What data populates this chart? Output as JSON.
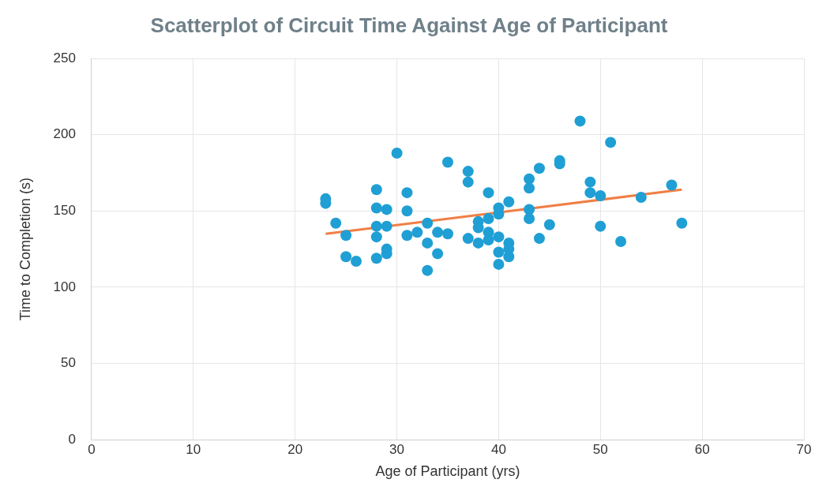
{
  "chart_data": {
    "type": "scatter",
    "title": "Scatterplot of Circuit Time Against Age of Participant",
    "xlabel": "Age of Participant (yrs)",
    "ylabel": "Time to Completion (s)",
    "xlim": [
      0,
      70
    ],
    "xticks": [
      0,
      10,
      20,
      30,
      40,
      50,
      60,
      70
    ],
    "ylim": [
      0,
      250
    ],
    "yticks": [
      0,
      50,
      100,
      150,
      200,
      250
    ],
    "grid": true,
    "legend": false,
    "marker": "circle",
    "series": [
      {
        "type": "scatter",
        "color": "#1f9fd4",
        "x": [
          23,
          23,
          24,
          25,
          25,
          26,
          28,
          28,
          28,
          28,
          28,
          29,
          29,
          29,
          29,
          30,
          31,
          31,
          31,
          32,
          33,
          33,
          33,
          34,
          34,
          35,
          35,
          37,
          37,
          37,
          38,
          38,
          38,
          39,
          39,
          39,
          39,
          40,
          40,
          40,
          40,
          40,
          41,
          41,
          41,
          41,
          43,
          43,
          43,
          43,
          44,
          44,
          45,
          46,
          46,
          48,
          49,
          49,
          50,
          50,
          51,
          52,
          54,
          57,
          58
        ],
        "values": [
          158,
          155,
          142,
          134,
          120,
          117,
          164,
          152,
          140,
          133,
          119,
          151,
          140,
          125,
          122,
          188,
          162,
          150,
          134,
          136,
          142,
          129,
          111,
          136,
          122,
          182,
          135,
          176,
          169,
          132,
          143,
          139,
          129,
          162,
          145,
          136,
          131,
          152,
          148,
          133,
          123,
          115,
          156,
          129,
          125,
          120,
          171,
          165,
          151,
          145,
          178,
          132,
          141,
          183,
          181,
          209,
          169,
          162,
          160,
          140,
          195,
          130,
          159,
          167,
          142
        ]
      },
      {
        "type": "line",
        "color": "#f07f45",
        "x": [
          23,
          58
        ],
        "values": [
          135,
          164
        ],
        "marker": "none"
      }
    ]
  }
}
